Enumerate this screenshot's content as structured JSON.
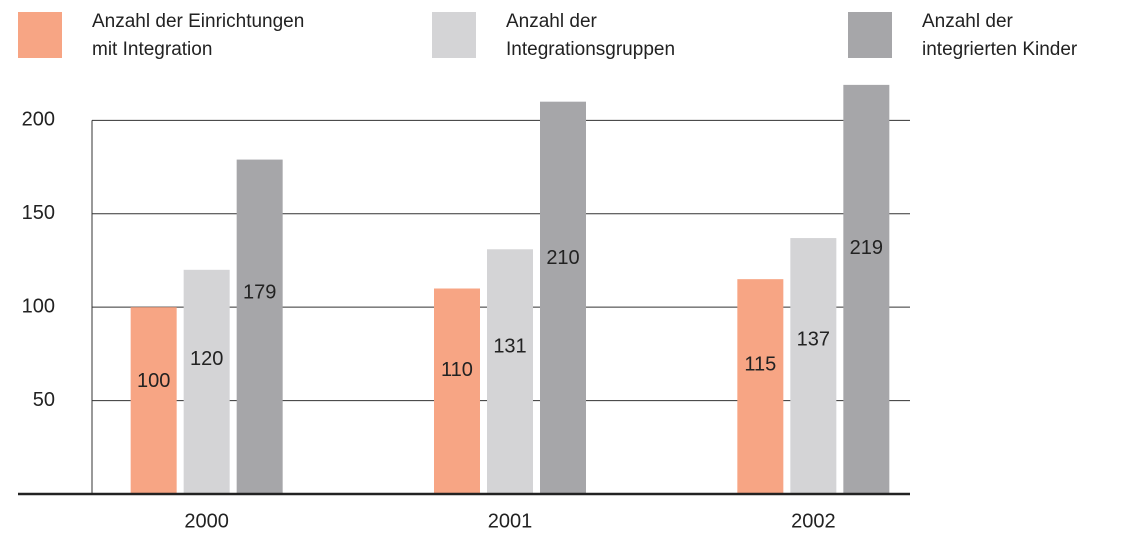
{
  "chart_data": {
    "type": "bar",
    "categories": [
      "2000",
      "2001",
      "2002"
    ],
    "series": [
      {
        "name": "Anzahl der Einrichtungen\nmit Integration",
        "color": "#f7a584",
        "values": [
          100,
          110,
          115
        ]
      },
      {
        "name": "Anzahl der\nIntegrationsgruppen",
        "color": "#d4d4d6",
        "values": [
          120,
          131,
          137
        ]
      },
      {
        "name": "Anzahl der\nintegrierten Kinder",
        "color": "#a6a6a9",
        "values": [
          179,
          210,
          219
        ]
      }
    ],
    "ylim": [
      0,
      220
    ],
    "yticks": [
      50,
      100,
      150,
      200
    ],
    "grid": true
  }
}
